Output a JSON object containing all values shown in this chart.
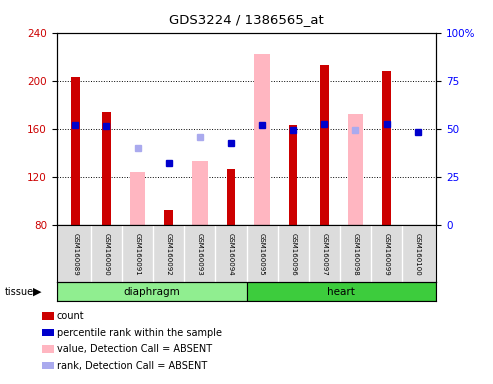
{
  "title": "GDS3224 / 1386565_at",
  "samples": [
    "GSM160089",
    "GSM160090",
    "GSM160091",
    "GSM160092",
    "GSM160093",
    "GSM160094",
    "GSM160095",
    "GSM160096",
    "GSM160097",
    "GSM160098",
    "GSM160099",
    "GSM160100"
  ],
  "count_values": [
    203,
    174,
    null,
    92,
    null,
    126,
    null,
    163,
    213,
    null,
    208,
    null
  ],
  "count_color": "#CC0000",
  "absent_value_values": [
    null,
    null,
    124,
    null,
    133,
    null,
    222,
    null,
    null,
    172,
    null,
    null
  ],
  "absent_value_color": "#FFB6C1",
  "percentile_rank_values": [
    163,
    162,
    null,
    131,
    null,
    148,
    163,
    159,
    164,
    null,
    164,
    157
  ],
  "percentile_rank_color": "#0000CC",
  "absent_rank_values": [
    null,
    null,
    144,
    null,
    153,
    null,
    null,
    null,
    null,
    159,
    null,
    null
  ],
  "absent_rank_color": "#AAAAEE",
  "ylim_left": [
    80,
    240
  ],
  "ylim_right": [
    0,
    100
  ],
  "yticks_left": [
    80,
    120,
    160,
    200,
    240
  ],
  "yticks_right": [
    0,
    25,
    50,
    75,
    100
  ],
  "bar_width": 0.5,
  "marker_size": 5,
  "tissue_label": "tissue",
  "diaphragm_color": "#90EE90",
  "heart_color": "#3DCC3D",
  "legend_items": [
    {
      "label": "count",
      "color": "#CC0000",
      "type": "square"
    },
    {
      "label": "percentile rank within the sample",
      "color": "#0000CC",
      "type": "square"
    },
    {
      "label": "value, Detection Call = ABSENT",
      "color": "#FFB6C1",
      "type": "square"
    },
    {
      "label": "rank, Detection Call = ABSENT",
      "color": "#AAAAEE",
      "type": "square"
    }
  ]
}
